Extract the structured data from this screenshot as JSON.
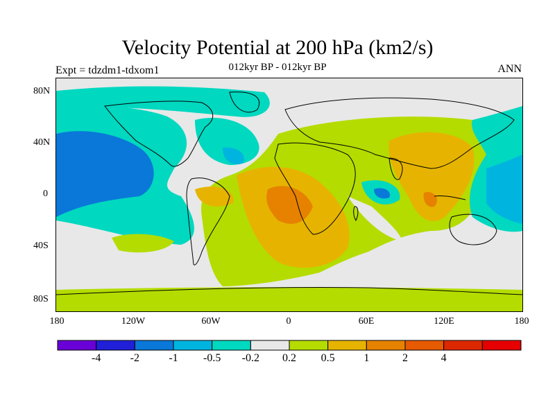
{
  "title": "Velocity Potential at 200 hPa (km2/s)",
  "subtitle": "012kyr BP - 012kyr BP",
  "left_label": "Expt = tdzdm1-tdxom1",
  "right_label": "ANN",
  "axes": {
    "lat_ticks": [
      "80N",
      "40N",
      "0",
      "40S",
      "80S"
    ],
    "lon_ticks": [
      "180",
      "120W",
      "60W",
      "0",
      "60E",
      "120E",
      "180"
    ]
  },
  "colorbar": {
    "colors": [
      "#6a00d8",
      "#2020d8",
      "#0a78d8",
      "#00b4e0",
      "#00d8c0",
      "#e8e8e8",
      "#b4dc00",
      "#e6b400",
      "#e68200",
      "#e65a00",
      "#dc2800",
      "#e60000"
    ],
    "labels": [
      "-4",
      "-2",
      "-1",
      "-0.5",
      "-0.2",
      "0.2",
      "0.5",
      "1",
      "2",
      "4"
    ]
  },
  "colors": {
    "land_outline": "#000000",
    "neutral": "#e8e8e8"
  }
}
